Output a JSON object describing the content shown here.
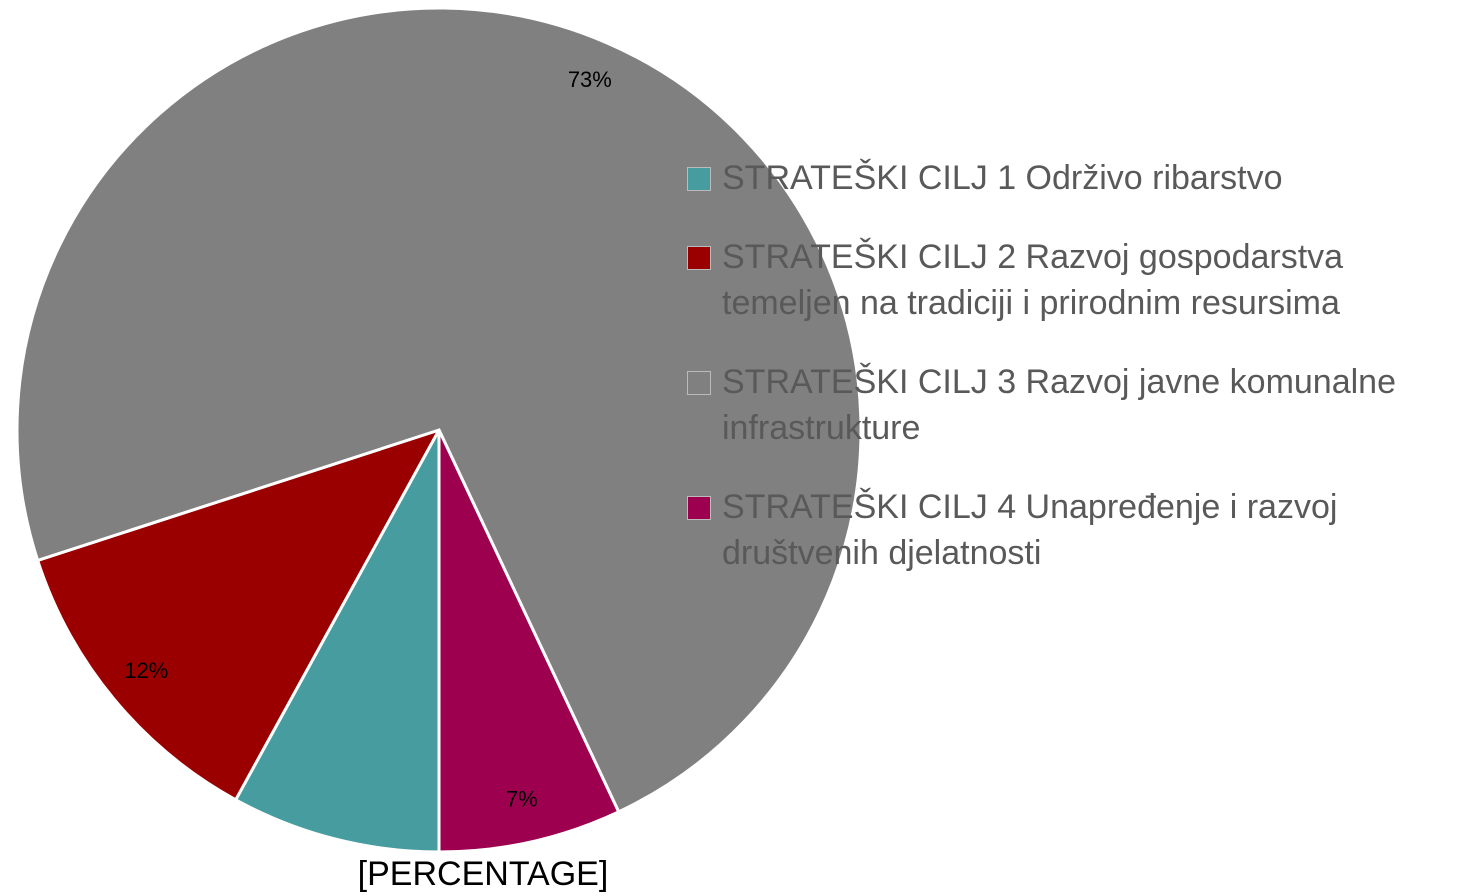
{
  "chart_data": {
    "type": "pie",
    "categories": [
      "STRATEŠKI CILJ 1 Održivo ribarstvo",
      "STRATEŠKI CILJ 2 Razvoj gospodarstva temeljen na tradiciji i prirodnim resursima",
      "STRATEŠKI CILJ 3 Razvoj javne komunalne infrastrukture",
      "STRATEŠKI CILJ 4 Unapređenje i razvoj društvenih djelatnosti"
    ],
    "values": [
      8,
      12,
      73,
      7
    ],
    "value_labels": [
      "[PERCENTAGE]",
      "12%",
      "73%",
      "7%"
    ],
    "colors": [
      "#469c9f",
      "#9b0000",
      "#808080",
      "#9c004f"
    ],
    "legend": "right"
  }
}
